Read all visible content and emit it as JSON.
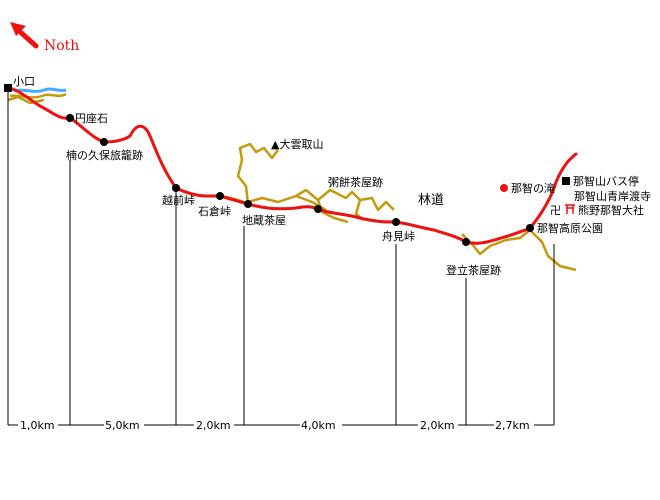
{
  "north_label": "Noth",
  "places": {
    "koguchi": "小口",
    "enzaishi": "円座石",
    "kusunokubo": "楠の久保旅籠跡",
    "echizen": "越前峠",
    "ishikura": "石倉峠",
    "jizo": "地蔵茶屋",
    "ogumotori": "▲大雲取山",
    "kayumochi": "粥餅茶屋跡",
    "rindo": "林道",
    "funami": "舟見峠",
    "noborita": "登立茶屋跡",
    "nachi_falls": "那智の滝",
    "bus_stop": "那智山バス停",
    "seiganto": "那智山青岸渡寺",
    "taisha": "熊野那智大社",
    "kogen": "那智高原公園"
  },
  "distances": [
    "1,0km",
    "5,0km",
    "2,0km",
    "4,0km",
    "2,0km",
    "2,7km"
  ],
  "colors": {
    "route": "#ee1111",
    "forest_road": "#c49a0c",
    "river": "#44aaff",
    "north_arrow": "#ee1111",
    "falls_marker": "#ee1111",
    "shrine_mark": "#ee1111"
  }
}
